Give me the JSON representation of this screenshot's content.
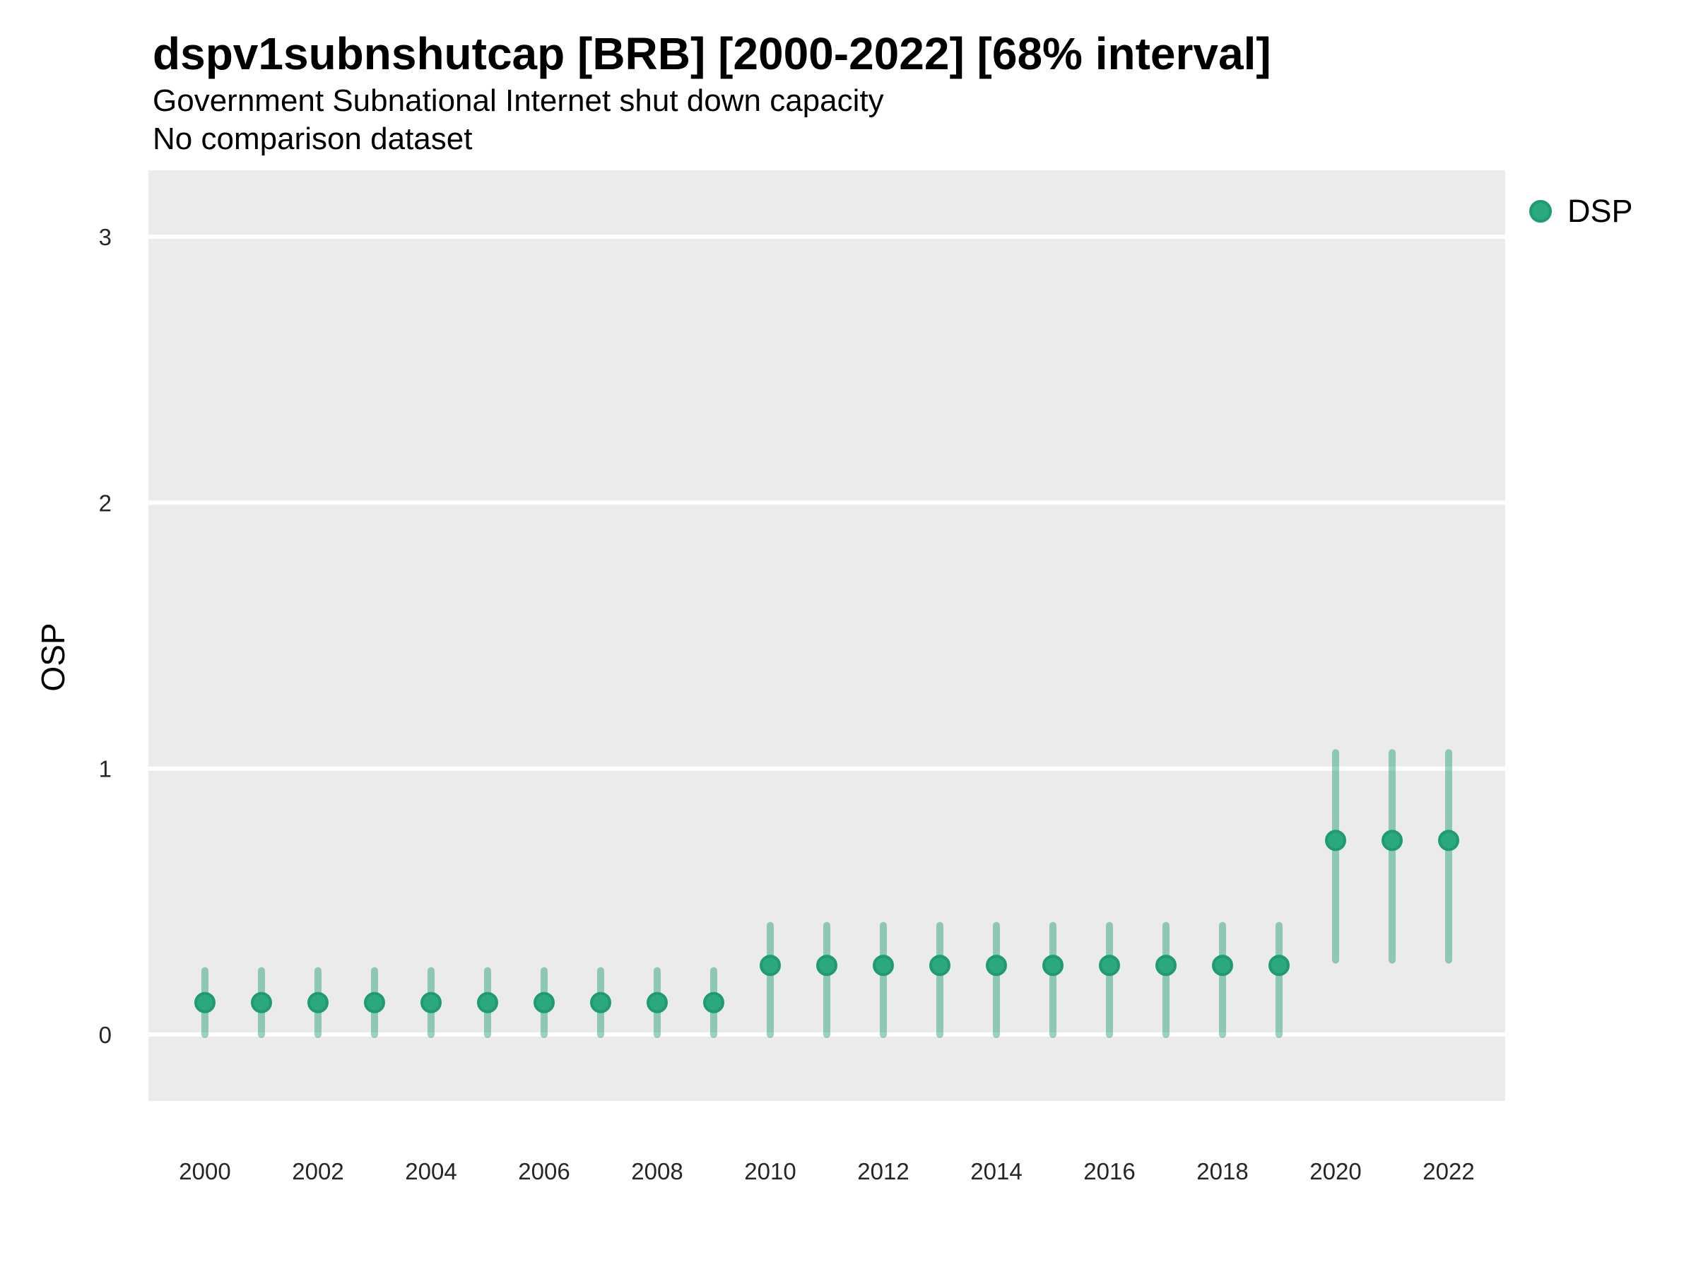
{
  "header": {
    "title": "dspv1subnshutcap [BRB] [2000-2022] [68% interval]",
    "subtitle": "Government Subnational Internet shut down capacity",
    "note": "No comparison dataset"
  },
  "axes": {
    "y_label": "OSP",
    "y_ticks": [
      "0",
      "1",
      "2",
      "3"
    ],
    "x_ticks": [
      "2000",
      "2002",
      "2004",
      "2006",
      "2008",
      "2010",
      "2012",
      "2014",
      "2016",
      "2018",
      "2020",
      "2022"
    ]
  },
  "legend": {
    "label": "DSP"
  },
  "colors": {
    "panel_bg": "#EBEBEB",
    "grid": "#FFFFFF",
    "point_fill": "#2BA87E",
    "point_stroke": "#1E9B71",
    "interval": "rgba(27,158,119,0.45)",
    "tick_text": "#262626",
    "text": "#000000"
  },
  "chart_data": {
    "type": "scatter",
    "subtype": "pointrange",
    "title": "dspv1subnshutcap [BRB] [2000-2022] [68% interval]",
    "subtitle": "Government Subnational Internet shut down capacity",
    "note": "No comparison dataset",
    "xlabel": "",
    "ylabel": "OSP",
    "interval_level": "68%",
    "grid": "horizontal-major-only",
    "legend_position": "right-top",
    "x": [
      2000,
      2001,
      2002,
      2003,
      2004,
      2005,
      2006,
      2007,
      2008,
      2009,
      2010,
      2011,
      2012,
      2013,
      2014,
      2015,
      2016,
      2017,
      2018,
      2019,
      2020,
      2021,
      2022
    ],
    "series": [
      {
        "name": "DSP",
        "values": [
          0.12,
          0.12,
          0.12,
          0.12,
          0.12,
          0.12,
          0.12,
          0.12,
          0.12,
          0.12,
          0.26,
          0.26,
          0.26,
          0.26,
          0.26,
          0.26,
          0.26,
          0.26,
          0.26,
          0.26,
          0.73,
          0.73,
          0.73
        ],
        "lower": [
          0.0,
          0.0,
          0.0,
          0.0,
          0.0,
          0.0,
          0.0,
          0.0,
          0.0,
          0.0,
          0.0,
          0.0,
          0.0,
          0.0,
          0.0,
          0.0,
          0.0,
          0.0,
          0.0,
          0.0,
          0.28,
          0.28,
          0.28
        ],
        "upper": [
          0.24,
          0.24,
          0.24,
          0.24,
          0.24,
          0.24,
          0.24,
          0.24,
          0.24,
          0.24,
          0.41,
          0.41,
          0.41,
          0.41,
          0.41,
          0.41,
          0.41,
          0.41,
          0.41,
          0.41,
          1.06,
          1.06,
          1.06
        ]
      }
    ],
    "xlim": [
      1999,
      2023
    ],
    "ylim": [
      -0.25,
      3.25
    ],
    "yticks": [
      0,
      1,
      2,
      3
    ],
    "xticks": [
      2000,
      2002,
      2004,
      2006,
      2008,
      2010,
      2012,
      2014,
      2016,
      2018,
      2020,
      2022
    ]
  }
}
